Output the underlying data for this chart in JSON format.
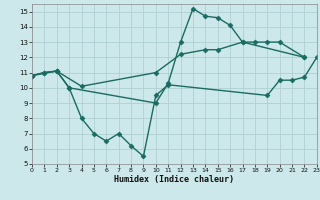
{
  "bg_color": "#cce8ea",
  "grid_color": "#b0d0d3",
  "line_color": "#1a6b62",
  "line1": {
    "x": [
      0,
      1,
      2,
      3,
      10,
      11,
      12,
      13,
      14,
      15,
      16,
      17,
      18,
      19,
      20,
      22
    ],
    "y": [
      10.8,
      11.0,
      11.1,
      10.0,
      9.0,
      10.3,
      13.0,
      15.2,
      14.7,
      14.6,
      14.1,
      13.0,
      13.0,
      13.0,
      13.0,
      12.0
    ]
  },
  "line2": {
    "x": [
      0,
      2,
      4,
      10,
      12,
      14,
      15,
      17,
      22
    ],
    "y": [
      10.8,
      11.1,
      10.1,
      11.0,
      12.2,
      12.5,
      12.5,
      13.0,
      12.0
    ]
  },
  "line3": {
    "x": [
      0,
      1,
      2,
      3,
      4,
      5,
      6,
      7,
      8,
      9,
      10,
      11,
      19,
      20,
      21,
      22,
      23
    ],
    "y": [
      10.8,
      11.0,
      11.1,
      10.0,
      8.0,
      7.0,
      6.5,
      7.0,
      6.2,
      5.5,
      9.5,
      10.2,
      9.5,
      10.5,
      10.5,
      10.7,
      12.0
    ]
  },
  "xlim": [
    0,
    23
  ],
  "ylim": [
    5,
    15.5
  ],
  "yticks": [
    5,
    6,
    7,
    8,
    9,
    10,
    11,
    12,
    13,
    14,
    15
  ],
  "xticks": [
    0,
    1,
    2,
    3,
    4,
    5,
    6,
    7,
    8,
    9,
    10,
    11,
    12,
    13,
    14,
    15,
    16,
    17,
    18,
    19,
    20,
    21,
    22,
    23
  ],
  "xlabel": "Humidex (Indice chaleur)",
  "markersize": 2.5,
  "linewidth": 1.0
}
